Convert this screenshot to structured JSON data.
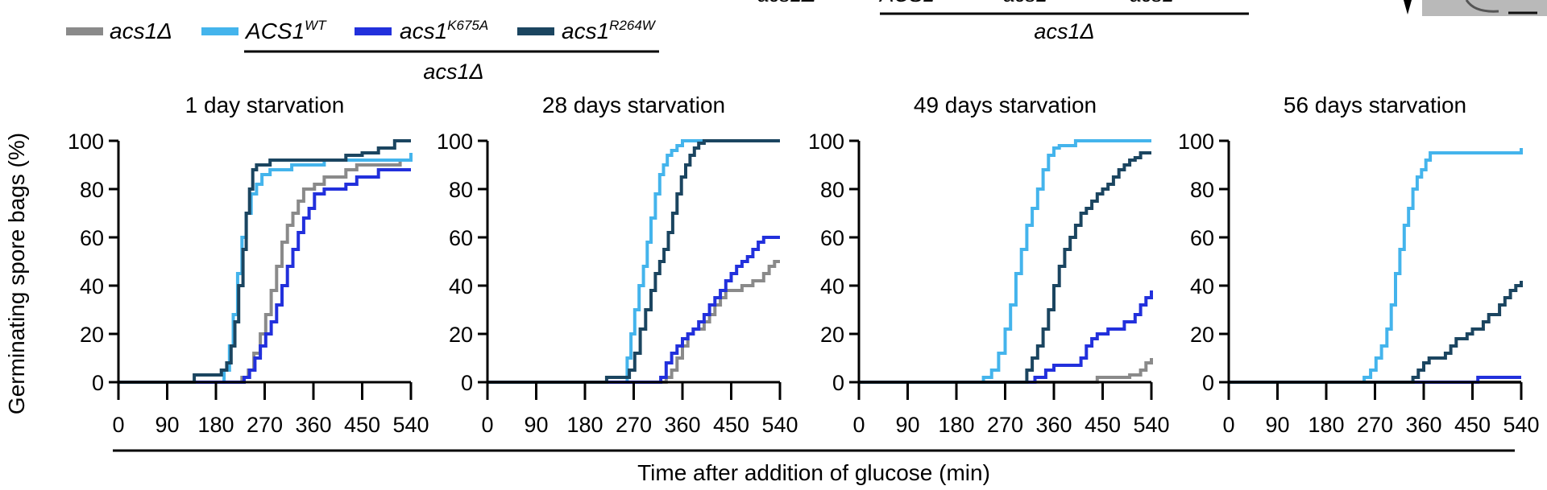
{
  "legend": {
    "items": [
      {
        "label": "acs1Δ",
        "sup": "",
        "color": "#8a8a8a"
      },
      {
        "label": "ACS1",
        "sup": "WT",
        "color": "#44b4ec"
      },
      {
        "label": "acs1",
        "sup": "K675A",
        "color": "#2230dc"
      },
      {
        "label": "acs1",
        "sup": "R264W",
        "color": "#1b4560"
      }
    ],
    "group_label": "acs1Δ"
  },
  "top_partial": {
    "left_text": "acs1Δ",
    "labels": [
      "ACS1",
      "acs1",
      "acs1"
    ],
    "group_label": "acs1Δ"
  },
  "y_axis_label": "Germinating spore bags (%)",
  "x_axis_label": "Time after addition of glucose (min)",
  "chart_data": [
    {
      "type": "line",
      "title": "1 day starvation",
      "xlabel": "Time after addition of glucose (min)",
      "ylabel": "Germinating spore bags (%)",
      "xlim": [
        0,
        540
      ],
      "ylim": [
        0,
        100
      ],
      "xticks": [
        0,
        90,
        180,
        270,
        360,
        450,
        540
      ],
      "yticks": [
        0,
        20,
        40,
        60,
        80,
        100
      ],
      "series": [
        {
          "name": "acs1Δ",
          "color": "#8a8a8a",
          "x": [
            0,
            210,
            228,
            240,
            250,
            262,
            272,
            282,
            292,
            302,
            312,
            322,
            332,
            342,
            352,
            362,
            380,
            400,
            420,
            440,
            460,
            480,
            500,
            520,
            540
          ],
          "y": [
            0,
            0,
            2,
            5,
            12,
            20,
            28,
            38,
            48,
            58,
            65,
            70,
            75,
            80,
            80,
            82,
            85,
            85,
            88,
            90,
            90,
            90,
            90,
            92,
            92
          ]
        },
        {
          "name": "ACS1 WT",
          "color": "#44b4ec",
          "x": [
            0,
            180,
            195,
            205,
            212,
            220,
            228,
            236,
            245,
            255,
            265,
            280,
            300,
            320,
            350,
            380,
            420,
            480,
            540
          ],
          "y": [
            0,
            0,
            5,
            15,
            28,
            45,
            60,
            70,
            78,
            82,
            86,
            88,
            88,
            90,
            90,
            92,
            92,
            92,
            95
          ]
        },
        {
          "name": "acs1 K675A",
          "color": "#2230dc",
          "x": [
            0,
            220,
            232,
            242,
            252,
            262,
            272,
            282,
            292,
            302,
            312,
            322,
            332,
            342,
            352,
            362,
            380,
            400,
            420,
            440,
            460,
            480,
            500,
            520,
            540
          ],
          "y": [
            0,
            0,
            2,
            5,
            10,
            15,
            20,
            25,
            32,
            40,
            48,
            55,
            62,
            68,
            72,
            78,
            80,
            80,
            82,
            85,
            85,
            88,
            88,
            88,
            88
          ]
        },
        {
          "name": "acs1 R264W",
          "color": "#1b4560",
          "x": [
            0,
            130,
            140,
            180,
            190,
            200,
            208,
            215,
            222,
            230,
            236,
            242,
            248,
            255,
            265,
            280,
            300,
            330,
            360,
            400,
            420,
            450,
            480,
            510,
            540
          ],
          "y": [
            0,
            0,
            3,
            3,
            5,
            8,
            15,
            25,
            40,
            55,
            70,
            80,
            88,
            90,
            90,
            92,
            92,
            92,
            92,
            92,
            94,
            95,
            97,
            100,
            100
          ]
        }
      ]
    },
    {
      "type": "line",
      "title": "28 days starvation",
      "xlabel": "Time after addition of glucose (min)",
      "ylabel": "Germinating spore bags (%)",
      "xlim": [
        0,
        540
      ],
      "ylim": [
        0,
        100
      ],
      "xticks": [
        0,
        90,
        180,
        270,
        360,
        450,
        540
      ],
      "yticks": [
        0,
        20,
        40,
        60,
        80,
        100
      ],
      "series": [
        {
          "name": "acs1Δ",
          "color": "#8a8a8a",
          "x": [
            0,
            320,
            330,
            340,
            350,
            360,
            370,
            380,
            390,
            400,
            410,
            420,
            430,
            440,
            450,
            460,
            470,
            480,
            490,
            500,
            510,
            520,
            530,
            540
          ],
          "y": [
            0,
            0,
            2,
            5,
            10,
            15,
            20,
            22,
            22,
            25,
            28,
            32,
            35,
            38,
            38,
            38,
            40,
            40,
            42,
            42,
            45,
            48,
            50,
            50
          ]
        },
        {
          "name": "ACS1 WT",
          "color": "#44b4ec",
          "x": [
            0,
            250,
            258,
            265,
            272,
            280,
            288,
            295,
            302,
            310,
            318,
            325,
            332,
            340,
            350,
            360,
            380,
            420,
            480,
            540
          ],
          "y": [
            0,
            0,
            10,
            20,
            30,
            40,
            48,
            58,
            68,
            78,
            86,
            90,
            94,
            96,
            98,
            100,
            100,
            100,
            100,
            100
          ]
        },
        {
          "name": "acs1 K675A",
          "color": "#2230dc",
          "x": [
            0,
            310,
            320,
            330,
            340,
            350,
            360,
            370,
            380,
            390,
            400,
            410,
            420,
            430,
            440,
            450,
            460,
            470,
            480,
            490,
            500,
            510,
            520,
            540
          ],
          "y": [
            0,
            0,
            2,
            8,
            12,
            15,
            18,
            20,
            22,
            25,
            28,
            32,
            35,
            38,
            42,
            45,
            48,
            50,
            52,
            55,
            58,
            60,
            60,
            60
          ]
        },
        {
          "name": "acs1 R264W",
          "color": "#1b4560",
          "x": [
            0,
            210,
            220,
            250,
            262,
            272,
            282,
            292,
            302,
            310,
            318,
            326,
            334,
            342,
            350,
            358,
            366,
            374,
            382,
            390,
            400,
            420,
            480,
            540
          ],
          "y": [
            0,
            0,
            2,
            2,
            5,
            12,
            22,
            30,
            38,
            45,
            50,
            55,
            62,
            70,
            78,
            85,
            90,
            94,
            97,
            99,
            100,
            100,
            100,
            100
          ]
        }
      ]
    },
    {
      "type": "line",
      "title": "49 days starvation",
      "xlabel": "Time after addition of glucose (min)",
      "ylabel": "Germinating spore bags (%)",
      "xlim": [
        0,
        540
      ],
      "ylim": [
        0,
        100
      ],
      "xticks": [
        0,
        90,
        180,
        270,
        360,
        450,
        540
      ],
      "yticks": [
        0,
        20,
        40,
        60,
        80,
        100
      ],
      "series": [
        {
          "name": "acs1Δ",
          "color": "#8a8a8a",
          "x": [
            0,
            430,
            440,
            480,
            500,
            510,
            520,
            530,
            540
          ],
          "y": [
            0,
            0,
            2,
            2,
            3,
            3,
            5,
            8,
            10
          ]
        },
        {
          "name": "ACS1 WT",
          "color": "#44b4ec",
          "x": [
            0,
            220,
            230,
            245,
            258,
            270,
            280,
            290,
            300,
            310,
            320,
            330,
            340,
            350,
            360,
            370,
            380,
            400,
            450,
            500,
            540
          ],
          "y": [
            0,
            0,
            2,
            5,
            12,
            22,
            32,
            45,
            55,
            65,
            72,
            80,
            88,
            94,
            97,
            98,
            98,
            100,
            100,
            100,
            100
          ]
        },
        {
          "name": "acs1 K675A",
          "color": "#2230dc",
          "x": [
            0,
            310,
            325,
            345,
            360,
            400,
            410,
            420,
            430,
            440,
            450,
            460,
            470,
            480,
            490,
            500,
            510,
            520,
            530,
            540
          ],
          "y": [
            0,
            0,
            2,
            5,
            7,
            7,
            10,
            15,
            18,
            20,
            20,
            22,
            22,
            22,
            25,
            25,
            28,
            32,
            35,
            38
          ]
        },
        {
          "name": "acs1 R264W",
          "color": "#1b4560",
          "x": [
            0,
            300,
            310,
            320,
            330,
            340,
            350,
            360,
            370,
            380,
            390,
            400,
            410,
            420,
            430,
            440,
            450,
            460,
            470,
            480,
            490,
            500,
            510,
            520,
            540
          ],
          "y": [
            0,
            0,
            5,
            10,
            15,
            22,
            30,
            40,
            48,
            55,
            60,
            65,
            70,
            72,
            75,
            78,
            80,
            82,
            85,
            88,
            90,
            92,
            93,
            95,
            95
          ]
        }
      ]
    },
    {
      "type": "line",
      "title": "56 days starvation",
      "xlabel": "Time after addition of glucose (min)",
      "ylabel": "Germinating spore bags (%)",
      "xlim": [
        0,
        540
      ],
      "ylim": [
        0,
        100
      ],
      "xticks": [
        0,
        90,
        180,
        270,
        360,
        450,
        540
      ],
      "yticks": [
        0,
        20,
        40,
        60,
        80,
        100
      ],
      "series": [
        {
          "name": "acs1Δ",
          "color": "#8a8a8a",
          "x": [
            0,
            540
          ],
          "y": [
            0,
            0
          ]
        },
        {
          "name": "ACS1 WT",
          "color": "#44b4ec",
          "x": [
            0,
            240,
            250,
            262,
            272,
            282,
            292,
            300,
            308,
            316,
            324,
            332,
            340,
            348,
            356,
            364,
            372,
            380,
            400,
            450,
            500,
            530,
            540
          ],
          "y": [
            0,
            0,
            2,
            5,
            10,
            15,
            22,
            32,
            45,
            55,
            65,
            72,
            80,
            85,
            88,
            92,
            95,
            95,
            95,
            95,
            95,
            95,
            97
          ]
        },
        {
          "name": "acs1 K675A",
          "color": "#2230dc",
          "x": [
            0,
            450,
            460,
            540
          ],
          "y": [
            0,
            0,
            2,
            2
          ]
        },
        {
          "name": "acs1 R264W",
          "color": "#1b4560",
          "x": [
            0,
            330,
            340,
            350,
            360,
            370,
            380,
            390,
            400,
            410,
            420,
            430,
            440,
            450,
            460,
            470,
            480,
            490,
            500,
            510,
            520,
            530,
            540
          ],
          "y": [
            0,
            0,
            2,
            5,
            8,
            10,
            10,
            10,
            12,
            15,
            18,
            18,
            20,
            22,
            22,
            25,
            28,
            28,
            32,
            35,
            38,
            40,
            42
          ]
        }
      ]
    }
  ]
}
